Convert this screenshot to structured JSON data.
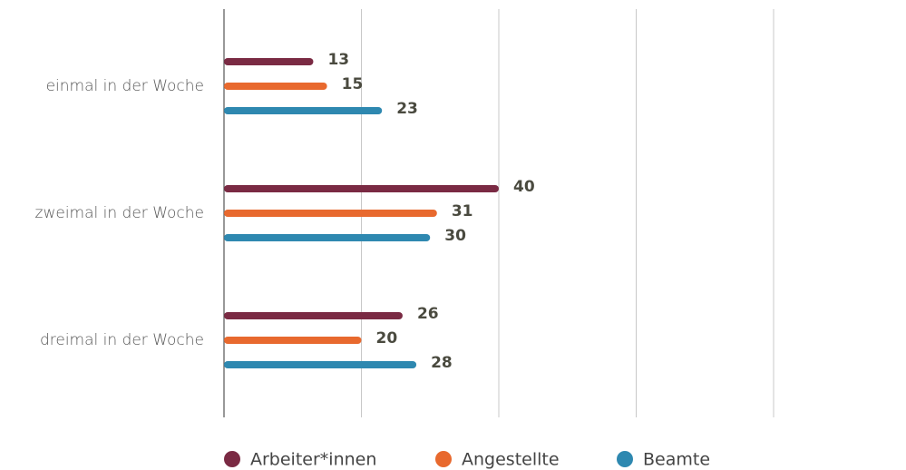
{
  "chart_data": {
    "type": "bar",
    "orientation": "horizontal",
    "categories": [
      "einmal in der Woche",
      "zweimal in der Woche",
      "dreimal in der Woche"
    ],
    "series": [
      {
        "name": "Arbeiter*innen",
        "color": "#7a2a43",
        "values": [
          13,
          40,
          26
        ]
      },
      {
        "name": "Angestellte",
        "color": "#e8692e",
        "values": [
          15,
          31,
          20
        ]
      },
      {
        "name": "Beamte",
        "color": "#2e88b0",
        "values": [
          23,
          30,
          28
        ]
      }
    ],
    "xlim": [
      0,
      80
    ],
    "xticks": [
      0,
      20,
      40,
      60,
      80
    ],
    "grid": true,
    "legend": "bottom"
  }
}
